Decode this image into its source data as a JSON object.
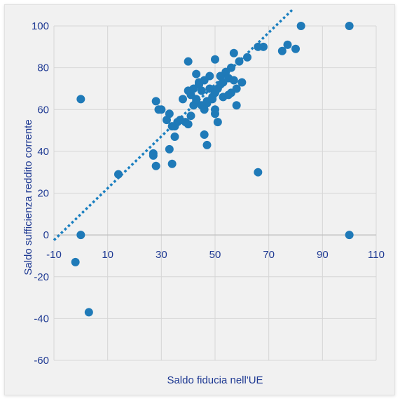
{
  "chart_data": {
    "type": "scatter",
    "title": "",
    "xlabel": "Saldo fiducia nell'UE",
    "ylabel": "Saldo sufficienza reddito corrente",
    "xlim": [
      -10,
      110
    ],
    "ylim": [
      -60,
      100
    ],
    "x_ticks": [
      -10,
      10,
      30,
      50,
      70,
      90,
      110
    ],
    "y_ticks": [
      -60,
      -40,
      -20,
      0,
      20,
      40,
      60,
      80,
      100
    ],
    "grid": true,
    "legend": "none",
    "colors": {
      "points": "#1f7ab8",
      "trendline": "#1a7fc0",
      "text": "#1f3a93",
      "grid": "#d6d6d6",
      "background": "#f1f1f1"
    },
    "trendline": {
      "style": "dotted",
      "x": [
        -10,
        79
      ],
      "y": [
        -2.5,
        108
      ]
    },
    "series": [
      {
        "x": [
          100,
          82,
          100,
          77,
          80,
          75,
          66,
          68,
          62,
          59,
          57,
          56,
          54,
          52,
          50,
          48,
          46,
          44,
          43,
          42,
          40,
          41,
          38,
          37,
          36,
          35,
          34,
          33,
          32,
          30,
          29,
          28,
          27,
          27,
          28,
          34,
          33,
          35,
          14,
          0,
          0,
          -2,
          3,
          40,
          44,
          48,
          50,
          53,
          55,
          57,
          58,
          60,
          46,
          47,
          49,
          51,
          52,
          56,
          45,
          43,
          42,
          45,
          47,
          49,
          50,
          51,
          53,
          55,
          58,
          44,
          46,
          41,
          39,
          50,
          52,
          47,
          66,
          43,
          40
        ],
        "y": [
          100,
          100,
          0,
          91,
          89,
          88,
          90,
          90,
          85,
          83,
          87,
          80,
          78,
          76,
          84,
          76,
          74,
          73,
          77,
          70,
          69,
          67,
          65,
          55,
          54,
          52,
          52,
          58,
          55,
          60,
          60,
          64,
          39,
          38,
          33,
          34,
          41,
          47,
          29,
          65,
          0,
          -13,
          -37,
          83,
          72,
          70,
          68,
          66,
          75,
          74,
          70,
          73,
          60,
          63,
          65,
          70,
          72,
          68,
          69,
          64,
          62,
          62,
          64,
          66,
          60,
          54,
          73,
          67,
          62,
          72,
          48,
          57,
          54,
          58,
          76,
          43,
          30,
          65,
          53
        ]
      }
    ]
  }
}
